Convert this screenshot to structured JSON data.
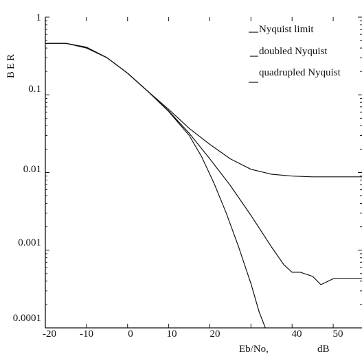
{
  "chart_data": {
    "type": "line",
    "title": "",
    "ylabel": "BER",
    "xlabel": "Eb/No,",
    "xunit": "dB",
    "yscale": "log",
    "xlim": [
      -20,
      57
    ],
    "ylim": [
      0.0001,
      1
    ],
    "xticks": [
      -20,
      -10,
      0,
      10,
      20,
      40,
      50
    ],
    "xtick_labels": [
      "-20",
      "-10",
      "0",
      "10",
      "20",
      "40",
      "50"
    ],
    "yticks": [
      1,
      0.1,
      0.01,
      0.001,
      0.0001
    ],
    "ytick_labels": [
      "1",
      "0.1",
      "0.01",
      "0.001",
      "0.0001"
    ],
    "grid": false,
    "legend_position": "top-right",
    "series": [
      {
        "name": "Nyquist limit",
        "x": [
          -20,
          -15,
          -10,
          -5,
          0,
          5,
          10,
          15,
          20,
          25,
          30,
          35,
          40,
          45,
          50,
          57
        ],
        "y": [
          0.46,
          0.46,
          0.4,
          0.3,
          0.19,
          0.11,
          0.065,
          0.037,
          0.023,
          0.015,
          0.011,
          0.0095,
          0.009,
          0.0088,
          0.0088,
          0.0088
        ]
      },
      {
        "name": "doubled Nyquist",
        "x": [
          -20,
          -15,
          -10,
          -5,
          0,
          5,
          10,
          15,
          20,
          25,
          30,
          35,
          38,
          40,
          42,
          45,
          47,
          50,
          57
        ],
        "y": [
          0.46,
          0.46,
          0.41,
          0.3,
          0.19,
          0.11,
          0.062,
          0.032,
          0.015,
          0.0068,
          0.0028,
          0.0011,
          0.00065,
          0.00052,
          0.00052,
          0.00046,
          0.00036,
          0.00043,
          0.00043
        ]
      },
      {
        "name": "quadrupled Nyquist",
        "x": [
          -20,
          -15,
          -10,
          -5,
          0,
          5,
          10,
          15,
          18,
          21,
          24,
          27,
          30,
          32,
          33.5
        ],
        "y": [
          0.46,
          0.46,
          0.41,
          0.3,
          0.19,
          0.11,
          0.061,
          0.03,
          0.016,
          0.0073,
          0.003,
          0.0011,
          0.00037,
          0.00016,
          0.0001
        ]
      }
    ]
  }
}
